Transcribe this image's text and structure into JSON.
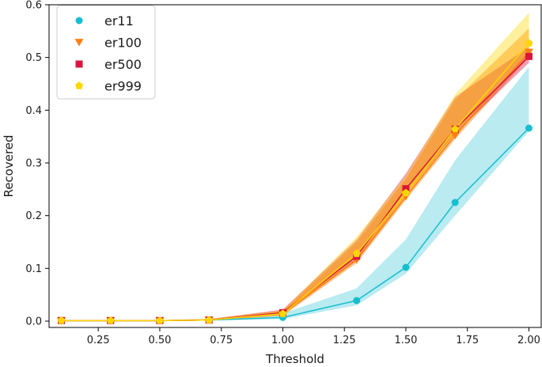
{
  "chart_data": {
    "type": "line",
    "xlabel": "Threshold",
    "ylabel": "Recovered",
    "xlim": [
      0.05,
      2.05
    ],
    "ylim": [
      -0.012,
      0.6
    ],
    "x": [
      0.1,
      0.3,
      0.5,
      0.7,
      1.0,
      1.3,
      1.5,
      1.7,
      2.0
    ],
    "x_ticks": [
      0.25,
      0.5,
      0.75,
      1.0,
      1.25,
      1.5,
      1.75,
      2.0
    ],
    "x_tick_labels": [
      "0.25",
      "0.50",
      "0.75",
      "1.00",
      "1.25",
      "1.50",
      "1.75",
      "2.00"
    ],
    "y_ticks": [
      0.0,
      0.1,
      0.2,
      0.3,
      0.4,
      0.5,
      0.6
    ],
    "y_tick_labels": [
      "0.0",
      "0.1",
      "0.2",
      "0.3",
      "0.4",
      "0.5",
      "0.6"
    ],
    "grid": false,
    "legend_position": "top-left",
    "series": [
      {
        "name": "er11",
        "color": "#17becf",
        "marker": "circle",
        "values": [
          0.001,
          0.001,
          0.001,
          0.002,
          0.007,
          0.039,
          0.102,
          0.225,
          0.366
        ],
        "lower": [
          0.0,
          0.0,
          0.0,
          0.001,
          0.004,
          0.03,
          0.09,
          0.2,
          0.36
        ],
        "upper": [
          0.002,
          0.002,
          0.002,
          0.004,
          0.015,
          0.062,
          0.155,
          0.305,
          0.482
        ]
      },
      {
        "name": "er100",
        "color": "#ff7f0e",
        "marker": "triangle-down",
        "values": [
          0.001,
          0.001,
          0.001,
          0.002,
          0.014,
          0.116,
          0.236,
          0.352,
          0.51
        ],
        "lower": [
          0.0,
          0.0,
          0.0,
          0.001,
          0.01,
          0.11,
          0.23,
          0.345,
          0.5
        ],
        "upper": [
          0.002,
          0.002,
          0.002,
          0.004,
          0.02,
          0.15,
          0.27,
          0.42,
          0.555
        ]
      },
      {
        "name": "er500",
        "color": "#dc143c",
        "marker": "square",
        "values": [
          0.001,
          0.001,
          0.001,
          0.002,
          0.016,
          0.123,
          0.251,
          0.364,
          0.502
        ],
        "lower": [
          0.0,
          0.0,
          0.0,
          0.001,
          0.012,
          0.115,
          0.24,
          0.355,
          0.49
        ],
        "upper": [
          0.002,
          0.002,
          0.002,
          0.004,
          0.022,
          0.155,
          0.28,
          0.425,
          0.52
        ]
      },
      {
        "name": "er999",
        "color": "#ffd700",
        "marker": "pentagon",
        "values": [
          0.001,
          0.001,
          0.001,
          0.002,
          0.014,
          0.128,
          0.243,
          0.364,
          0.527
        ],
        "lower": [
          0.0,
          0.0,
          0.0,
          0.001,
          0.011,
          0.12,
          0.235,
          0.355,
          0.51
        ],
        "upper": [
          0.002,
          0.002,
          0.002,
          0.004,
          0.02,
          0.16,
          0.275,
          0.43,
          0.585
        ]
      }
    ]
  }
}
